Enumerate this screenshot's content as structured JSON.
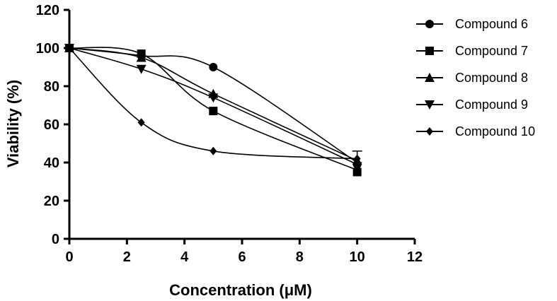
{
  "chart_data": {
    "type": "scatter",
    "title": "",
    "xlabel": "Concentration (μM)",
    "ylabel": "Viability (%)",
    "xlim": [
      0,
      12
    ],
    "ylim": [
      0,
      120
    ],
    "xticks": [
      0,
      2,
      4,
      6,
      8,
      10,
      12
    ],
    "yticks": [
      0,
      20,
      40,
      60,
      80,
      100,
      120
    ],
    "grid": false,
    "legend_position": "right",
    "fit": "smooth curve",
    "series": [
      {
        "name": "Compound 6",
        "marker": "circle",
        "x": [
          0,
          2.5,
          5,
          10
        ],
        "y": [
          100,
          96,
          90,
          39
        ],
        "fit_end": 40
      },
      {
        "name": "Compound 7",
        "marker": "square",
        "x": [
          0,
          2.5,
          5,
          10
        ],
        "y": [
          100,
          97,
          67,
          35
        ],
        "fit_end": 36
      },
      {
        "name": "Compound 8",
        "marker": "triangle-up",
        "x": [
          0,
          2.5,
          5,
          10
        ],
        "y": [
          100,
          95,
          76,
          41
        ],
        "fit_end": 41
      },
      {
        "name": "Compound 9",
        "marker": "triangle-down",
        "x": [
          0,
          2.5,
          5,
          10
        ],
        "y": [
          100,
          89,
          74,
          38
        ],
        "fit_end": 39
      },
      {
        "name": "Compound 10",
        "marker": "diamond",
        "x": [
          0,
          2.5,
          5,
          10
        ],
        "y": [
          100,
          61,
          46,
          42
        ],
        "fit_end": 42,
        "error": [
          0,
          0,
          0,
          4
        ]
      }
    ]
  }
}
